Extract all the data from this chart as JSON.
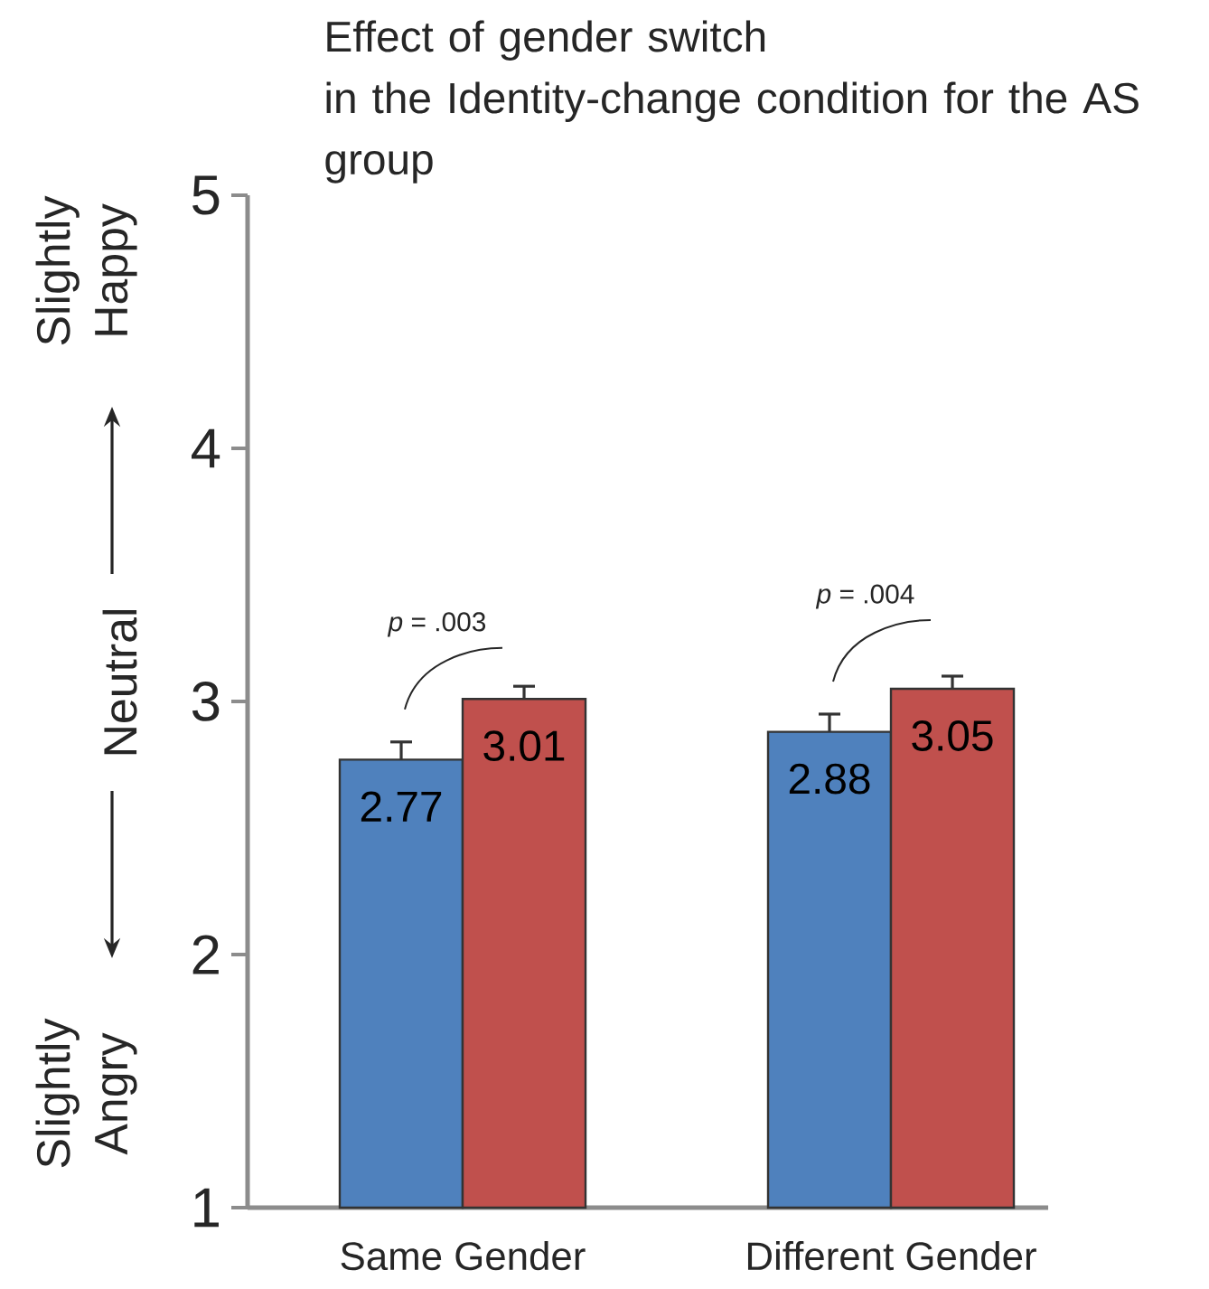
{
  "chart_data": {
    "type": "bar",
    "title": "Effect of gender switch",
    "subtitle": "in the Identity-change condition for the AS group",
    "categories": [
      "Same Gender",
      "Different Gender"
    ],
    "series": [
      {
        "color": "#4f81bd",
        "values": [
          2.77,
          2.88
        ],
        "errors": [
          0.07,
          0.07
        ]
      },
      {
        "color": "#c0504d",
        "values": [
          3.01,
          3.05
        ],
        "errors": [
          0.05,
          0.05
        ]
      }
    ],
    "ylim": [
      1,
      5
    ],
    "yticks": [
      1,
      2,
      3,
      4,
      5
    ],
    "data_labels": true,
    "annotations": [
      "Slightly Happy",
      "Neutral",
      "Slightly Angry",
      "*p* = .003",
      "*p* = .004"
    ]
  }
}
